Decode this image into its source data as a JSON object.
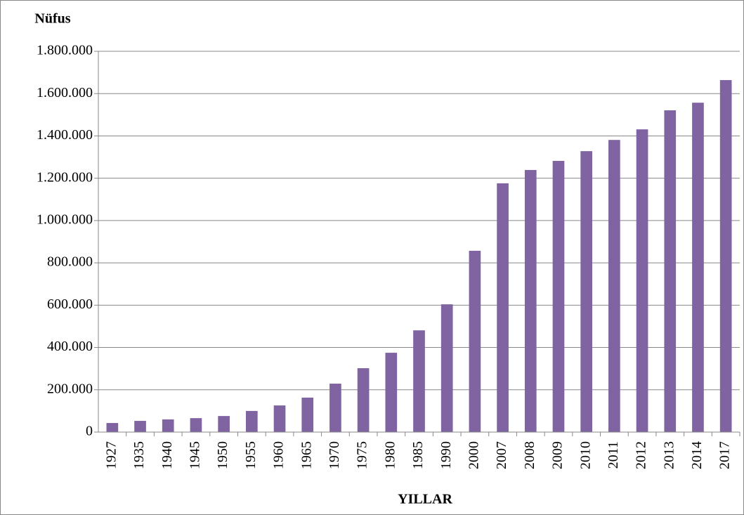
{
  "chart_data": {
    "type": "bar",
    "y_label": "Nüfus",
    "x_label": "YILLAR",
    "categories": [
      "1927",
      "1935",
      "1940",
      "1945",
      "1950",
      "1955",
      "1960",
      "1965",
      "1970",
      "1975",
      "1980",
      "1985",
      "1990",
      "2000",
      "2007",
      "2008",
      "2009",
      "2010",
      "2011",
      "2012",
      "2013",
      "2014",
      "2017"
    ],
    "values": [
      43000,
      53000,
      60000,
      66000,
      76000,
      100000,
      126000,
      163000,
      229000,
      302000,
      375000,
      481000,
      604000,
      857000,
      1176000,
      1239000,
      1282000,
      1328000,
      1381000,
      1431000,
      1521000,
      1557000,
      1664000
    ],
    "color": "#8064a2",
    "ylim": [
      0,
      1800000
    ],
    "yticks": [
      0,
      {
        "value": 200000,
        "label": "200.000"
      },
      {
        "value": 400000,
        "label": "400.000"
      },
      {
        "value": 600000,
        "label": "600.000"
      },
      {
        "value": 800000,
        "label": "800.000"
      },
      {
        "value": 1000000,
        "label": "1.000.000"
      },
      {
        "value": 1200000,
        "label": "1.200.000"
      },
      {
        "value": 1400000,
        "label": "1.400.000"
      },
      {
        "value": 1600000,
        "label": "1.600.000"
      },
      {
        "value": 1800000,
        "label": "1.800.000"
      }
    ],
    "grid": true
  }
}
